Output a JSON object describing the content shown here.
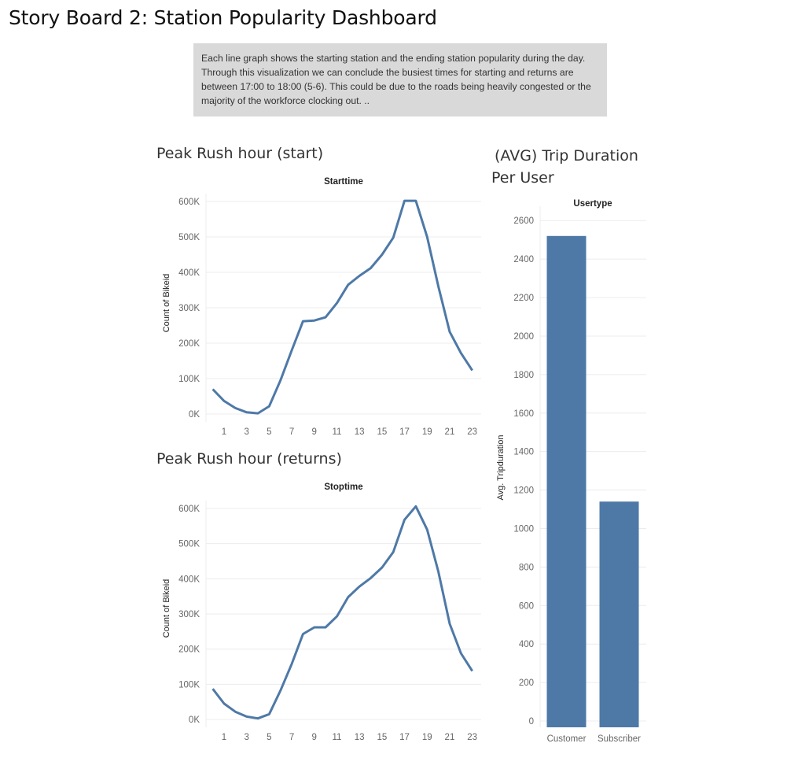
{
  "page": {
    "title": "Story Board 2: Station Popularity Dashboard",
    "caption": "Each line graph shows the starting station and the ending station popularity during the day. Through this visualization we can conclude the busiest times for starting and returns are between 17:00 to 18:00 (5-6). This could be due to the roads being heavily congested or the majority of the workforce clocking out. .."
  },
  "colors": {
    "series": "#4e79a7",
    "grid": "#ececec",
    "caption_bg": "#d9d9d9"
  },
  "chart_data": [
    {
      "type": "line",
      "title": "Peak Rush hour (start)",
      "header": "Starttime",
      "xlabel": "",
      "ylabel": "Count of Bikeid",
      "x": [
        0,
        1,
        2,
        3,
        4,
        5,
        6,
        7,
        8,
        9,
        10,
        11,
        12,
        13,
        14,
        15,
        16,
        17,
        18,
        19,
        20,
        21,
        22,
        23
      ],
      "xticks": [
        "1",
        "3",
        "5",
        "7",
        "9",
        "11",
        "13",
        "15",
        "17",
        "19",
        "21",
        "23"
      ],
      "yticks": [
        "0K",
        "100K",
        "200K",
        "300K",
        "400K",
        "500K",
        "600K"
      ],
      "ylim": [
        0,
        600000
      ],
      "series": [
        {
          "values": [
            70000,
            37000,
            17000,
            5000,
            2000,
            22000,
            95000,
            180000,
            262000,
            264000,
            273000,
            313000,
            365000,
            390000,
            412000,
            450000,
            498000,
            602000,
            602000,
            500000,
            360000,
            232000,
            172000,
            123000
          ]
        }
      ]
    },
    {
      "type": "line",
      "title": "Peak Rush hour (returns)",
      "header": "Stoptime",
      "xlabel": "",
      "ylabel": "Count of Bikeid",
      "x": [
        0,
        1,
        2,
        3,
        4,
        5,
        6,
        7,
        8,
        9,
        10,
        11,
        12,
        13,
        14,
        15,
        16,
        17,
        18,
        19,
        20,
        21,
        22,
        23
      ],
      "xticks": [
        "1",
        "3",
        "5",
        "7",
        "9",
        "11",
        "13",
        "15",
        "17",
        "19",
        "21",
        "23"
      ],
      "yticks": [
        "0K",
        "100K",
        "200K",
        "300K",
        "400K",
        "500K",
        "600K"
      ],
      "ylim": [
        0,
        600000
      ],
      "series": [
        {
          "values": [
            87000,
            45000,
            22000,
            8000,
            3000,
            15000,
            82000,
            158000,
            243000,
            262000,
            262000,
            293000,
            348000,
            378000,
            402000,
            432000,
            476000,
            568000,
            606000,
            540000,
            420000,
            272000,
            188000,
            138000
          ]
        }
      ]
    },
    {
      "type": "bar",
      "title": "(AVG) Trip Duration Per User",
      "header": "Usertype",
      "xlabel": "",
      "ylabel": "Avg. Tripduration",
      "categories": [
        "Customer",
        "Subscriber"
      ],
      "values": [
        2520,
        1140
      ],
      "yticks": [
        "0",
        "200",
        "400",
        "600",
        "800",
        "1000",
        "1200",
        "1400",
        "1600",
        "1800",
        "2000",
        "2200",
        "2400",
        "2600"
      ],
      "ylim": [
        0,
        2650
      ]
    }
  ]
}
